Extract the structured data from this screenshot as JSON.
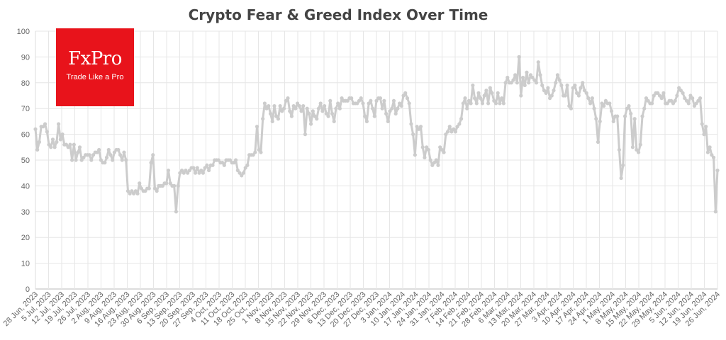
{
  "logo": {
    "name": "FxPro",
    "tagline": "Trade Like a Pro"
  },
  "colors": {
    "series": "#cccccc",
    "grid": "#e6e6e6",
    "logo_bg": "#e8131b"
  },
  "chart_data": {
    "type": "line",
    "title": "Crypto Fear & Greed Index Over Time",
    "xlabel": "",
    "ylabel": "",
    "ylim": [
      0,
      100
    ],
    "yticks": [
      0,
      10,
      20,
      30,
      40,
      50,
      60,
      70,
      80,
      90,
      100
    ],
    "grid": true,
    "x_tick_labels": [
      "28 Jun, 2023",
      "5 Jul, 2023",
      "12 Jul, 2023",
      "19 Jul, 2023",
      "26 Jul, 2023",
      "2 Aug, 2023",
      "9 Aug, 2023",
      "16 Aug, 2023",
      "23 Aug, 2023",
      "30 Aug, 2023",
      "6 Sep, 2023",
      "13 Sep, 2023",
      "20 Sep, 2023",
      "27 Sep, 2023",
      "4 Oct, 2023",
      "11 Oct, 2023",
      "18 Oct, 2023",
      "25 Oct, 2023",
      "1 Nov, 2023",
      "8 Nov, 2023",
      "15 Nov, 2023",
      "22 Nov, 2023",
      "29 Nov, 2023",
      "6 Dec, 2023",
      "13 Dec, 2023",
      "20 Dec, 2023",
      "27 Dec, 2023",
      "3 Jan, 2024",
      "10 Jan, 2024",
      "17 Jan, 2024",
      "24 Jan, 2024",
      "31 Jan, 2024",
      "7 Feb, 2024",
      "14 Feb, 2024",
      "21 Feb, 2024",
      "28 Feb, 2024",
      "6 Mar, 2024",
      "13 Mar, 2024",
      "20 Mar, 2024",
      "27 Mar, 2024",
      "3 Apr, 2024",
      "10 Apr, 2024",
      "17 Apr, 2024",
      "24 Apr, 2024",
      "1 May, 2024",
      "8 May, 2024",
      "15 May, 2024",
      "22 May, 2024",
      "29 May, 2024",
      "5 Jun, 2024",
      "12 Jun, 2024",
      "19 Jun, 2024",
      "26 Jun, 2024"
    ],
    "series": [
      {
        "values": [
          62,
          54,
          57,
          63,
          63,
          64,
          61,
          56,
          55,
          58,
          55,
          57,
          64,
          58,
          60,
          56,
          56,
          55,
          56,
          50,
          56,
          50,
          53,
          55,
          50,
          51,
          52,
          52,
          52,
          50,
          52,
          53,
          53,
          54,
          50,
          49,
          49,
          51,
          54,
          52,
          50,
          53,
          54,
          54,
          52,
          50,
          53,
          50,
          38,
          37,
          38,
          37,
          38,
          37,
          41,
          39,
          38,
          38,
          39,
          39,
          49,
          52,
          39,
          38,
          40,
          40,
          40,
          41,
          41,
          46,
          41,
          40,
          40,
          30,
          40,
          45,
          46,
          45,
          46,
          45,
          46,
          47,
          47,
          45,
          47,
          45,
          46,
          45,
          47,
          48,
          46,
          48,
          48,
          50,
          50,
          50,
          49,
          49,
          48,
          50,
          50,
          50,
          49,
          49,
          50,
          46,
          45,
          44,
          45,
          47,
          48,
          52,
          52,
          52,
          53,
          63,
          54,
          53,
          66,
          72,
          70,
          71,
          68,
          65,
          71,
          67,
          66,
          71,
          69,
          70,
          73,
          74,
          69,
          67,
          71,
          70,
          72,
          71,
          69,
          71,
          60,
          70,
          68,
          64,
          69,
          67,
          66,
          70,
          72,
          69,
          71,
          68,
          67,
          73,
          68,
          65,
          70,
          72,
          70,
          74,
          73,
          73,
          73,
          74,
          74,
          72,
          72,
          72,
          73,
          74,
          72,
          67,
          65,
          72,
          73,
          70,
          67,
          73,
          74,
          74,
          70,
          73,
          68,
          65,
          69,
          70,
          73,
          68,
          70,
          72,
          71,
          75,
          76,
          74,
          72,
          64,
          60,
          52,
          63,
          62,
          63,
          55,
          51,
          55,
          54,
          50,
          48,
          49,
          50,
          48,
          55,
          54,
          53,
          60,
          61,
          63,
          61,
          62,
          61,
          63,
          64,
          66,
          72,
          74,
          70,
          73,
          72,
          79,
          74,
          72,
          76,
          74,
          72,
          75,
          77,
          72,
          78,
          76,
          73,
          72,
          76,
          72,
          74,
          72,
          80,
          82,
          80,
          80,
          81,
          83,
          80,
          90,
          75,
          82,
          79,
          84,
          80,
          83,
          82,
          81,
          80,
          88,
          83,
          79,
          77,
          76,
          78,
          74,
          75,
          77,
          80,
          83,
          81,
          79,
          75,
          75,
          79,
          71,
          70,
          78,
          79,
          76,
          75,
          78,
          80,
          77,
          76,
          74,
          72,
          74,
          70,
          66,
          57,
          65,
          72,
          71,
          73,
          72,
          72,
          69,
          65,
          67,
          67,
          54,
          43,
          48,
          67,
          70,
          71,
          68,
          55,
          66,
          54,
          53,
          56,
          67,
          70,
          74,
          73,
          72,
          72,
          75,
          76,
          76,
          75,
          74,
          76,
          72,
          72,
          73,
          73,
          72,
          73,
          75,
          78,
          77,
          76,
          74,
          73,
          72,
          75,
          74,
          71,
          72,
          73,
          74,
          64,
          60,
          63,
          53,
          55,
          52,
          51,
          30,
          46
        ]
      }
    ]
  }
}
